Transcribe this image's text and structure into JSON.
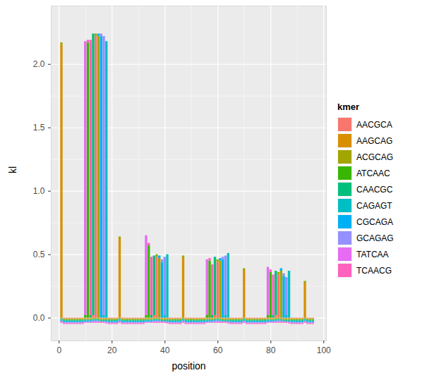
{
  "chart_data": {
    "type": "bar",
    "stacked": true,
    "grid": true,
    "legend": "right",
    "xlabel": "position",
    "ylabel": "kl",
    "legend_title": "kmer",
    "xlim": [
      -3,
      101
    ],
    "xticks": [
      0,
      20,
      40,
      60,
      80,
      100
    ],
    "ylim": [
      -0.18,
      2.46
    ],
    "yticks": [
      {
        "value": 0,
        "label": "0.0"
      },
      {
        "value": 0.5,
        "label": "0.5"
      },
      {
        "value": 1,
        "label": "1.0"
      },
      {
        "value": 1.5,
        "label": "1.5"
      },
      {
        "value": 2,
        "label": "2.0"
      }
    ],
    "x": [
      1,
      2,
      3,
      4,
      5,
      6,
      7,
      8,
      9,
      10,
      11,
      12,
      13,
      14,
      15,
      16,
      17,
      18,
      19,
      20,
      21,
      22,
      23,
      24,
      25,
      26,
      27,
      28,
      29,
      30,
      31,
      32,
      33,
      34,
      35,
      36,
      37,
      38,
      39,
      40,
      41,
      42,
      43,
      44,
      45,
      46,
      47,
      48,
      49,
      50,
      51,
      52,
      53,
      54,
      55,
      56,
      57,
      58,
      59,
      60,
      61,
      62,
      63,
      64,
      65,
      66,
      67,
      68,
      69,
      70,
      71,
      72,
      73,
      74,
      75,
      76,
      77,
      78,
      79,
      80,
      81,
      82,
      83,
      84,
      85,
      86,
      87,
      88,
      89,
      90,
      91,
      92,
      93,
      94,
      95,
      96
    ],
    "series": [
      {
        "name": "AACGCA",
        "color": "#F8766D",
        "values": [
          -0.005,
          -0.005,
          -0.005,
          -0.005,
          -0.005,
          -0.005,
          -0.005,
          -0.005,
          -0.005,
          -0.005,
          -0.005,
          -0.005,
          0.02,
          2.22,
          -0.005,
          -0.005,
          -0.005,
          -0.005,
          -0.005,
          -0.005,
          -0.005,
          -0.005,
          -0.005,
          -0.005,
          -0.005,
          -0.005,
          -0.005,
          -0.005,
          -0.005,
          -0.005,
          -0.005,
          -0.005,
          -0.005,
          -0.005,
          -0.005,
          0.02,
          0.48,
          -0.005,
          -0.005,
          -0.005,
          -0.005,
          -0.005,
          -0.005,
          -0.005,
          -0.005,
          -0.005,
          -0.005,
          -0.005,
          -0.005,
          -0.005,
          -0.005,
          -0.005,
          -0.005,
          -0.005,
          -0.005,
          -0.005,
          -0.005,
          -0.005,
          0.02,
          0.44,
          -0.005,
          -0.005,
          -0.005,
          -0.005,
          -0.005,
          -0.005,
          -0.005,
          -0.005,
          -0.005,
          -0.005,
          -0.005,
          -0.005,
          -0.005,
          -0.005,
          -0.005,
          -0.005,
          -0.005,
          -0.005,
          -0.005,
          -0.005,
          -0.005,
          0.02,
          0.34,
          -0.005,
          -0.005,
          -0.005,
          -0.005,
          -0.005,
          -0.005,
          -0.005,
          -0.005,
          -0.005,
          -0.005,
          -0.005,
          -0.005,
          -0.005
        ]
      },
      {
        "name": "AAGCAG",
        "color": "#D89000",
        "values": [
          2.15,
          -0.005,
          -0.005,
          -0.005,
          -0.005,
          -0.005,
          -0.005,
          -0.005,
          -0.005,
          -0.005,
          -0.005,
          -0.005,
          -0.005,
          -0.005,
          -0.005,
          -0.005,
          -0.005,
          -0.005,
          -0.005,
          -0.005,
          -0.005,
          -0.005,
          0.62,
          -0.005,
          -0.005,
          -0.005,
          -0.005,
          -0.005,
          -0.005,
          -0.005,
          -0.005,
          -0.005,
          -0.005,
          -0.005,
          -0.005,
          -0.005,
          -0.005,
          -0.005,
          -0.005,
          -0.005,
          -0.005,
          -0.005,
          -0.005,
          -0.005,
          -0.005,
          -0.005,
          0.47,
          -0.005,
          -0.005,
          -0.005,
          -0.005,
          -0.005,
          -0.005,
          -0.005,
          -0.005,
          -0.005,
          -0.005,
          -0.005,
          -0.005,
          -0.005,
          -0.005,
          -0.005,
          -0.005,
          -0.005,
          -0.005,
          -0.005,
          -0.005,
          -0.005,
          -0.005,
          0.37,
          -0.005,
          -0.005,
          -0.005,
          -0.005,
          -0.005,
          -0.005,
          -0.005,
          -0.005,
          -0.005,
          -0.005,
          -0.005,
          -0.005,
          -0.005,
          -0.005,
          -0.005,
          -0.005,
          -0.005,
          -0.005,
          -0.005,
          -0.005,
          -0.005,
          -0.005,
          0.27,
          -0.005,
          -0.005,
          -0.005
        ]
      },
      {
        "name": "ACGCAG",
        "color": "#A3A500",
        "values": [
          0.02,
          -0.005,
          -0.005,
          -0.005,
          -0.005,
          -0.005,
          -0.005,
          -0.005,
          -0.005,
          -0.005,
          -0.005,
          -0.005,
          -0.005,
          0.02,
          2.22,
          -0.005,
          -0.005,
          -0.005,
          -0.005,
          -0.005,
          -0.005,
          -0.005,
          0.02,
          -0.005,
          -0.005,
          -0.005,
          -0.005,
          -0.005,
          -0.005,
          -0.005,
          -0.005,
          -0.005,
          -0.005,
          -0.005,
          -0.005,
          -0.005,
          0.02,
          0.47,
          -0.005,
          -0.005,
          -0.005,
          -0.005,
          -0.005,
          -0.005,
          -0.005,
          -0.005,
          0.02,
          -0.005,
          -0.005,
          -0.005,
          -0.005,
          -0.005,
          -0.005,
          -0.005,
          -0.005,
          -0.005,
          -0.005,
          -0.005,
          -0.005,
          0.02,
          0.45,
          -0.005,
          -0.005,
          -0.005,
          -0.005,
          -0.005,
          -0.005,
          -0.005,
          -0.005,
          0.02,
          -0.005,
          -0.005,
          -0.005,
          -0.005,
          -0.005,
          -0.005,
          -0.005,
          -0.005,
          -0.005,
          -0.005,
          -0.005,
          -0.005,
          0.02,
          0.37,
          -0.005,
          -0.005,
          -0.005,
          -0.005,
          -0.005,
          -0.005,
          -0.005,
          -0.005,
          0.02,
          -0.005,
          -0.005,
          -0.005
        ]
      },
      {
        "name": "ATCAAC",
        "color": "#39B600",
        "values": [
          -0.005,
          -0.005,
          -0.005,
          -0.005,
          -0.005,
          -0.005,
          -0.005,
          -0.005,
          -0.005,
          0.02,
          2.17,
          -0.005,
          -0.005,
          -0.005,
          -0.005,
          -0.005,
          -0.005,
          -0.005,
          -0.005,
          -0.005,
          -0.005,
          -0.005,
          -0.005,
          -0.005,
          -0.005,
          -0.005,
          -0.005,
          -0.005,
          -0.005,
          -0.005,
          -0.005,
          -0.005,
          0.02,
          0.57,
          -0.005,
          -0.005,
          -0.005,
          -0.005,
          -0.005,
          -0.005,
          -0.005,
          -0.005,
          -0.005,
          -0.005,
          -0.005,
          -0.005,
          -0.005,
          -0.005,
          -0.005,
          -0.005,
          -0.005,
          -0.005,
          -0.005,
          -0.005,
          -0.005,
          0.02,
          0.45,
          -0.005,
          -0.005,
          -0.005,
          -0.005,
          -0.005,
          -0.005,
          -0.005,
          -0.005,
          -0.005,
          -0.005,
          -0.005,
          -0.005,
          -0.005,
          -0.005,
          -0.005,
          -0.005,
          -0.005,
          -0.005,
          -0.005,
          -0.005,
          -0.005,
          0.02,
          0.36,
          -0.005,
          -0.005,
          -0.005,
          -0.005,
          -0.005,
          -0.005,
          -0.005,
          -0.005,
          -0.005,
          -0.005,
          -0.005,
          -0.005,
          -0.005,
          -0.005,
          -0.005,
          -0.005
        ]
      },
      {
        "name": "CAACGC",
        "color": "#00BF7D",
        "values": [
          -0.005,
          -0.005,
          -0.005,
          -0.005,
          -0.005,
          -0.005,
          -0.005,
          -0.005,
          -0.005,
          -0.005,
          -0.005,
          0.02,
          2.22,
          -0.005,
          -0.005,
          -0.005,
          -0.005,
          -0.005,
          -0.005,
          -0.005,
          -0.005,
          -0.005,
          -0.005,
          -0.005,
          -0.005,
          -0.005,
          -0.005,
          -0.005,
          -0.005,
          -0.005,
          -0.005,
          -0.005,
          -0.005,
          -0.005,
          0.02,
          0.47,
          -0.005,
          -0.005,
          -0.005,
          -0.005,
          -0.005,
          -0.005,
          -0.005,
          -0.005,
          -0.005,
          -0.005,
          -0.005,
          -0.005,
          -0.005,
          -0.005,
          -0.005,
          -0.005,
          -0.005,
          -0.005,
          -0.005,
          -0.005,
          -0.005,
          0.02,
          0.46,
          -0.005,
          -0.005,
          -0.005,
          -0.005,
          -0.005,
          -0.005,
          -0.005,
          -0.005,
          -0.005,
          -0.005,
          -0.005,
          -0.005,
          -0.005,
          -0.005,
          -0.005,
          -0.005,
          -0.005,
          -0.005,
          -0.005,
          -0.005,
          -0.005,
          0.02,
          0.35,
          -0.005,
          -0.005,
          -0.005,
          -0.005,
          -0.005,
          -0.005,
          -0.005,
          -0.005,
          -0.005,
          -0.005,
          -0.005,
          -0.005,
          -0.005,
          -0.005
        ]
      },
      {
        "name": "CAGAGT",
        "color": "#00BFC4",
        "values": [
          -0.005,
          -0.005,
          -0.005,
          -0.005,
          -0.005,
          -0.005,
          -0.005,
          -0.005,
          -0.005,
          -0.005,
          -0.005,
          -0.005,
          -0.005,
          -0.005,
          -0.005,
          -0.005,
          0.02,
          2.18,
          -0.005,
          -0.005,
          -0.005,
          -0.005,
          -0.005,
          -0.005,
          -0.005,
          -0.005,
          -0.005,
          -0.005,
          -0.005,
          -0.005,
          -0.005,
          -0.005,
          -0.005,
          -0.005,
          -0.005,
          -0.005,
          -0.005,
          -0.005,
          -0.005,
          0.02,
          0.5,
          -0.005,
          -0.005,
          -0.005,
          -0.005,
          -0.005,
          -0.005,
          -0.005,
          -0.005,
          -0.005,
          -0.005,
          -0.005,
          -0.005,
          -0.005,
          -0.005,
          -0.005,
          -0.005,
          -0.005,
          -0.005,
          -0.005,
          -0.005,
          -0.005,
          0.02,
          0.51,
          -0.005,
          -0.005,
          -0.005,
          -0.005,
          -0.005,
          -0.005,
          -0.005,
          -0.005,
          -0.005,
          -0.005,
          -0.005,
          -0.005,
          -0.005,
          -0.005,
          -0.005,
          -0.005,
          -0.005,
          -0.005,
          -0.005,
          -0.005,
          -0.005,
          0.02,
          0.37,
          -0.005,
          -0.005,
          -0.005,
          -0.005,
          -0.005,
          -0.005,
          -0.005,
          -0.005,
          -0.005
        ]
      },
      {
        "name": "CGCAGA",
        "color": "#00B0F6",
        "values": [
          -0.005,
          -0.005,
          -0.005,
          -0.005,
          -0.005,
          -0.005,
          -0.005,
          -0.005,
          -0.005,
          -0.005,
          -0.005,
          -0.005,
          -0.005,
          -0.005,
          0.02,
          2.22,
          -0.005,
          -0.005,
          -0.005,
          -0.005,
          -0.005,
          -0.005,
          -0.005,
          -0.005,
          -0.005,
          -0.005,
          -0.005,
          -0.005,
          -0.005,
          -0.005,
          -0.005,
          -0.005,
          -0.005,
          -0.005,
          -0.005,
          -0.005,
          -0.005,
          0.02,
          0.44,
          -0.005,
          -0.005,
          -0.005,
          -0.005,
          -0.005,
          -0.005,
          -0.005,
          -0.005,
          -0.005,
          -0.005,
          -0.005,
          -0.005,
          -0.005,
          -0.005,
          -0.005,
          -0.005,
          -0.005,
          -0.005,
          -0.005,
          -0.005,
          -0.005,
          0.02,
          0.46,
          -0.005,
          -0.005,
          -0.005,
          -0.005,
          -0.005,
          -0.005,
          -0.005,
          -0.005,
          -0.005,
          -0.005,
          -0.005,
          -0.005,
          -0.005,
          -0.005,
          -0.005,
          -0.005,
          -0.005,
          -0.005,
          -0.005,
          -0.005,
          -0.005,
          0.02,
          0.33,
          -0.005,
          -0.005,
          -0.005,
          -0.005,
          -0.005,
          -0.005,
          -0.005,
          -0.005,
          -0.005,
          -0.005,
          -0.005
        ]
      },
      {
        "name": "GCAGAG",
        "color": "#9590FF",
        "values": [
          -0.005,
          -0.005,
          -0.005,
          -0.005,
          -0.005,
          -0.005,
          -0.005,
          -0.005,
          -0.005,
          -0.005,
          -0.005,
          -0.005,
          -0.005,
          -0.005,
          -0.005,
          0.02,
          2.2,
          -0.005,
          -0.005,
          -0.005,
          -0.005,
          -0.005,
          -0.005,
          -0.005,
          -0.005,
          -0.005,
          -0.005,
          -0.005,
          -0.005,
          -0.005,
          -0.005,
          -0.005,
          -0.005,
          -0.005,
          -0.005,
          -0.005,
          -0.005,
          -0.005,
          0.02,
          0.46,
          -0.005,
          -0.005,
          -0.005,
          -0.005,
          -0.005,
          -0.005,
          -0.005,
          -0.005,
          -0.005,
          -0.005,
          -0.005,
          -0.005,
          -0.005,
          -0.005,
          -0.005,
          -0.005,
          -0.005,
          -0.005,
          -0.005,
          -0.005,
          -0.005,
          0.02,
          0.47,
          -0.005,
          -0.005,
          -0.005,
          -0.005,
          -0.005,
          -0.005,
          -0.005,
          -0.005,
          -0.005,
          -0.005,
          -0.005,
          -0.005,
          -0.005,
          -0.005,
          -0.005,
          -0.005,
          -0.005,
          -0.005,
          -0.005,
          -0.005,
          -0.005,
          0.02,
          0.3,
          -0.005,
          -0.005,
          -0.005,
          -0.005,
          -0.005,
          -0.005,
          -0.005,
          -0.005,
          -0.005,
          -0.005
        ]
      },
      {
        "name": "TATCAA",
        "color": "#E76BF3",
        "values": [
          -0.005,
          -0.005,
          -0.005,
          -0.005,
          -0.005,
          -0.005,
          -0.005,
          -0.005,
          -0.005,
          2.16,
          -0.005,
          -0.005,
          -0.005,
          -0.005,
          -0.005,
          -0.005,
          -0.005,
          -0.005,
          -0.005,
          -0.005,
          -0.005,
          -0.005,
          -0.005,
          -0.005,
          -0.005,
          -0.005,
          -0.005,
          -0.005,
          -0.005,
          -0.005,
          -0.005,
          -0.005,
          0.63,
          -0.005,
          -0.005,
          -0.005,
          -0.005,
          -0.005,
          -0.005,
          -0.005,
          -0.005,
          -0.005,
          -0.005,
          -0.005,
          -0.005,
          -0.005,
          -0.005,
          -0.005,
          -0.005,
          -0.005,
          -0.005,
          -0.005,
          -0.005,
          -0.005,
          -0.005,
          0.44,
          -0.005,
          -0.005,
          -0.005,
          -0.005,
          -0.005,
          -0.005,
          -0.005,
          -0.005,
          -0.005,
          -0.005,
          -0.005,
          -0.005,
          -0.005,
          -0.005,
          -0.005,
          -0.005,
          -0.005,
          -0.005,
          -0.005,
          -0.005,
          -0.005,
          -0.005,
          0.38,
          -0.005,
          -0.005,
          -0.005,
          -0.005,
          -0.005,
          -0.005,
          -0.005,
          -0.005,
          -0.005,
          -0.005,
          -0.005,
          -0.005,
          -0.005,
          -0.005,
          -0.005,
          -0.005,
          -0.005
        ]
      },
      {
        "name": "TCAACG",
        "color": "#FF62BC",
        "values": [
          -0.005,
          -0.005,
          -0.005,
          -0.005,
          -0.005,
          -0.005,
          -0.005,
          -0.005,
          -0.005,
          -0.005,
          0.02,
          2.17,
          -0.005,
          -0.005,
          -0.005,
          -0.005,
          -0.005,
          -0.005,
          -0.005,
          -0.005,
          -0.005,
          -0.005,
          -0.005,
          -0.005,
          -0.005,
          -0.005,
          -0.005,
          -0.005,
          -0.005,
          -0.005,
          -0.005,
          -0.005,
          -0.005,
          0.02,
          0.46,
          -0.005,
          -0.005,
          -0.005,
          -0.005,
          -0.005,
          -0.005,
          -0.005,
          -0.005,
          -0.005,
          -0.005,
          -0.005,
          -0.005,
          -0.005,
          -0.005,
          -0.005,
          -0.005,
          -0.005,
          -0.005,
          -0.005,
          -0.005,
          -0.005,
          0.02,
          0.4,
          -0.005,
          -0.005,
          -0.005,
          -0.005,
          -0.005,
          -0.005,
          -0.005,
          -0.005,
          -0.005,
          -0.005,
          -0.005,
          -0.005,
          -0.005,
          -0.005,
          -0.005,
          -0.005,
          -0.005,
          -0.005,
          -0.005,
          -0.005,
          -0.005,
          0.02,
          0.32,
          -0.005,
          -0.005,
          -0.005,
          -0.005,
          -0.005,
          -0.005,
          -0.005,
          -0.005,
          -0.005,
          -0.005,
          -0.005,
          -0.005,
          -0.005,
          -0.005,
          -0.005
        ]
      }
    ]
  }
}
